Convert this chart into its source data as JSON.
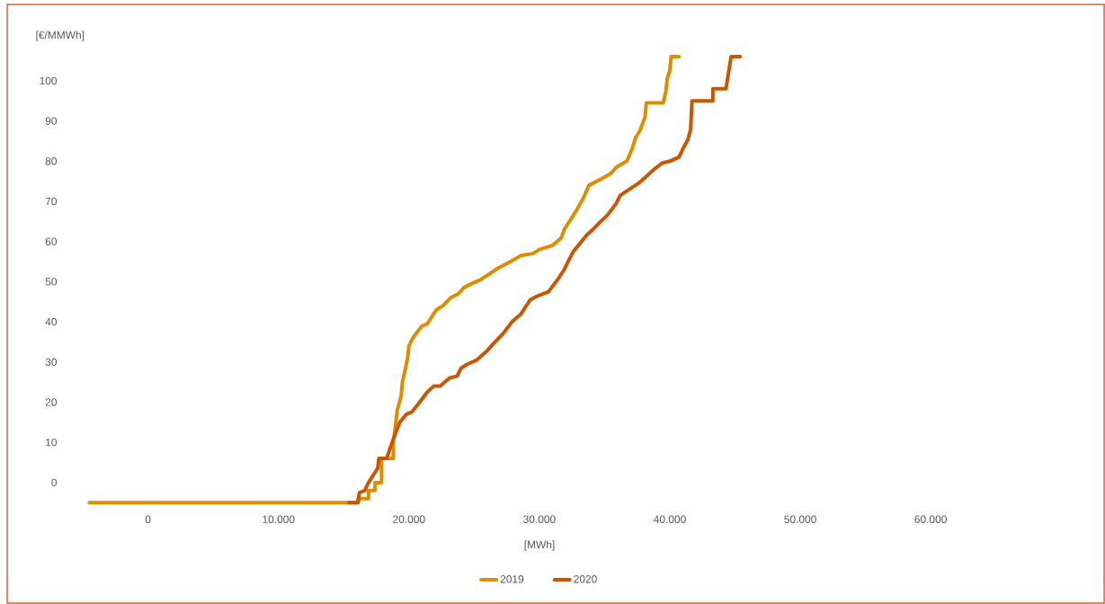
{
  "chart_data": {
    "type": "line",
    "xlabel": "[MWh]",
    "ylabel": "[€/MMWh]",
    "xticks": [
      {
        "value": 0,
        "label": "0"
      },
      {
        "value": 10000,
        "label": "10.000"
      },
      {
        "value": 20000,
        "label": "20.000"
      },
      {
        "value": 30000,
        "label": "30.000"
      },
      {
        "value": 40000,
        "label": "40.000"
      },
      {
        "value": 50000,
        "label": "50.000"
      },
      {
        "value": 60000,
        "label": "60.000"
      }
    ],
    "yticks": [
      0,
      10,
      20,
      30,
      40,
      50,
      60,
      70,
      80,
      90,
      100
    ],
    "xlim": [
      -10800,
      73300
    ],
    "ylim": [
      -30,
      119
    ],
    "legend": "bottom",
    "series": [
      {
        "name": "2019",
        "color": "#e08c00",
        "x": [
          -4500,
          16100,
          16100,
          16900,
          16900,
          17400,
          17400,
          17900,
          17900,
          18800,
          18800,
          19000,
          19100,
          19400,
          19500,
          19700,
          19900,
          20000,
          20300,
          21000,
          21400,
          22100,
          22600,
          23200,
          23800,
          24200,
          24800,
          25500,
          26200,
          26900,
          27800,
          28600,
          29500,
          30000,
          31000,
          31700,
          31900,
          32300,
          32800,
          33400,
          33800,
          34700,
          35500,
          35900,
          36700,
          37100,
          37400,
          37700,
          38100,
          38200,
          39500,
          39700,
          39800,
          40000,
          40100,
          40700
        ],
        "values": [
          -5,
          -5,
          -4,
          -4,
          -2,
          -2,
          0,
          0,
          6,
          6,
          10,
          15,
          18,
          21.5,
          25,
          28,
          31,
          34,
          36,
          39,
          39.5,
          43,
          44,
          46,
          47,
          48.5,
          49.5,
          50.5,
          52,
          53.5,
          55,
          56.5,
          57,
          58,
          59,
          61,
          63,
          65,
          67.5,
          71,
          74,
          75.5,
          77,
          78.5,
          80,
          83,
          86,
          87.5,
          91,
          94.5,
          94.5,
          97.5,
          100.5,
          102.5,
          106,
          106
        ]
      },
      {
        "name": "2020",
        "color": "#cc5500",
        "x": [
          15400,
          16100,
          16200,
          16600,
          16900,
          17200,
          17600,
          17700,
          18300,
          18600,
          19000,
          19300,
          19800,
          20200,
          20700,
          21400,
          21900,
          22400,
          23100,
          23700,
          24000,
          24500,
          25200,
          25900,
          26600,
          27200,
          27900,
          28600,
          29300,
          29900,
          30700,
          31400,
          31900,
          32200,
          32600,
          33100,
          33600,
          34100,
          34700,
          35200,
          35900,
          36200,
          36900,
          37600,
          38300,
          38800,
          39400,
          40000,
          40700,
          41000,
          41400,
          41600,
          41700,
          43300,
          43300,
          44300,
          44500,
          44700,
          45400
        ],
        "values": [
          -5,
          -5,
          -2.5,
          -2,
          0,
          1.5,
          3.5,
          6,
          6,
          9,
          12.5,
          15,
          17,
          17.5,
          19.5,
          22.5,
          24,
          24,
          26,
          26.5,
          28.5,
          29.5,
          30.5,
          32.5,
          35,
          37,
          40,
          42,
          45.5,
          46.5,
          47.5,
          50.5,
          53,
          55,
          57.5,
          59.5,
          61.5,
          63,
          65,
          66.5,
          69.5,
          71.5,
          73,
          74.5,
          76.5,
          78,
          79.5,
          80,
          81,
          83,
          85.5,
          88,
          95,
          95,
          98,
          98,
          102,
          106,
          106
        ]
      }
    ]
  }
}
